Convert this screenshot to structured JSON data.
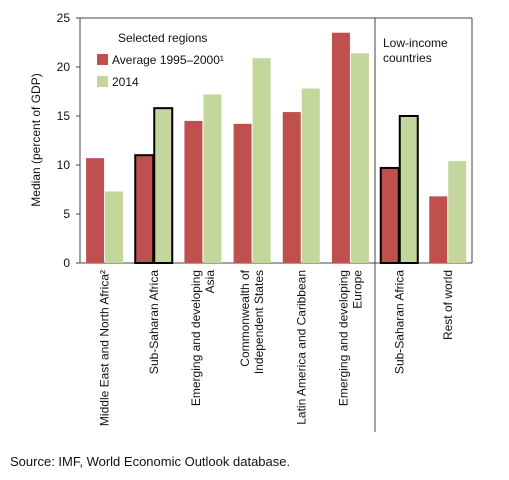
{
  "chart_data": {
    "type": "bar",
    "y_label": "Median (percent of GDP)",
    "categories": [
      [
        "Middle East and North Africa²"
      ],
      [
        "Sub-Saharan Africa"
      ],
      [
        "Emerging and developing",
        "Asia"
      ],
      [
        "Commonwealth of",
        "Independent States"
      ],
      [
        "Latin America and Caribbean"
      ],
      [
        "Emerging and developing",
        "Europe"
      ],
      [
        "Sub-Saharan Africa"
      ],
      [
        "Rest of world"
      ]
    ],
    "series": [
      {
        "name": "Average 1995–2000¹",
        "color": "#c0504d",
        "values": [
          10.7,
          11.0,
          14.5,
          14.2,
          15.4,
          23.5,
          9.7,
          6.8
        ]
      },
      {
        "name": "2014",
        "color": "#c3d69b",
        "values": [
          7.3,
          15.8,
          17.2,
          20.9,
          17.8,
          21.4,
          15.0,
          10.4
        ]
      }
    ],
    "outlined": [
      1,
      6
    ],
    "panels": [
      {
        "label": [
          "Selected regions"
        ],
        "count": 6
      },
      {
        "label": [
          "Low-income",
          "countries"
        ],
        "count": 2
      }
    ],
    "ylim": [
      0,
      25
    ],
    "yticks": [
      0,
      5,
      10,
      15,
      20,
      25
    ],
    "source": "Source: IMF, World Economic Outlook database."
  }
}
